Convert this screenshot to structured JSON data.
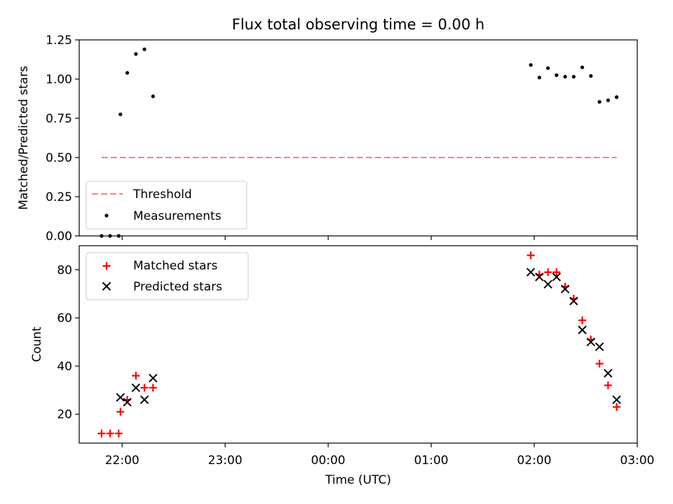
{
  "title": "Flux total observing time = 0.00 h",
  "colors": {
    "threshold": "#ff7f7f",
    "measurements": "#000000",
    "matched": "#ff0000",
    "predicted": "#000000"
  },
  "chart_data": [
    {
      "type": "scatter",
      "ylabel": "Matched/Predicted stars",
      "xlim": [
        "21:35",
        "03:00"
      ],
      "ylim": [
        0,
        1.25
      ],
      "yticks": [
        "0.00",
        "0.25",
        "0.50",
        "0.75",
        "1.00",
        "1.25"
      ],
      "legend_position": "lower-left",
      "series": [
        {
          "name": "Threshold",
          "style": "dashed-line",
          "x": [
            "21:48",
            "02:48"
          ],
          "y": [
            0.5,
            0.5
          ]
        },
        {
          "name": "Measurements",
          "style": "dot",
          "x": [
            "21:48",
            "21:53",
            "21:58",
            "21:59",
            "22:03",
            "22:08",
            "22:13",
            "22:18",
            "01:58",
            "02:03",
            "02:08",
            "02:13",
            "02:18",
            "02:23",
            "02:28",
            "02:33",
            "02:38",
            "02:43",
            "02:48"
          ],
          "y": [
            0.0,
            0.0,
            0.0,
            0.775,
            1.04,
            1.16,
            1.19,
            0.89,
            1.09,
            1.01,
            1.07,
            1.025,
            1.015,
            1.015,
            1.075,
            1.02,
            0.855,
            0.865,
            0.885
          ]
        }
      ]
    },
    {
      "type": "scatter",
      "ylabel": "Count",
      "xlabel": "Time (UTC)",
      "xlim": [
        "21:35",
        "03:00"
      ],
      "xticks": [
        "22:00",
        "23:00",
        "00:00",
        "01:00",
        "02:00",
        "03:00"
      ],
      "ylim": [
        8,
        90
      ],
      "yticks": [
        "20",
        "40",
        "60",
        "80"
      ],
      "legend_position": "upper-left",
      "series": [
        {
          "name": "Matched stars",
          "marker": "+",
          "x": [
            "21:48",
            "21:53",
            "21:58",
            "21:59",
            "22:03",
            "22:08",
            "22:13",
            "22:18",
            "01:58",
            "02:03",
            "02:08",
            "02:13",
            "02:18",
            "02:23",
            "02:28",
            "02:33",
            "02:38",
            "02:43",
            "02:48"
          ],
          "y": [
            12,
            12,
            12,
            21,
            26,
            36,
            31,
            31,
            86,
            78,
            79,
            79,
            73,
            68,
            59,
            51,
            41,
            32,
            23
          ]
        },
        {
          "name": "Predicted stars",
          "marker": "x",
          "x": [
            "21:59",
            "22:03",
            "22:08",
            "22:13",
            "22:18",
            "01:58",
            "02:03",
            "02:08",
            "02:13",
            "02:18",
            "02:23",
            "02:28",
            "02:33",
            "02:38",
            "02:43",
            "02:48"
          ],
          "y": [
            27,
            25,
            31,
            26,
            35,
            79,
            77,
            74,
            77,
            72,
            67,
            55,
            50,
            48,
            37,
            26
          ]
        }
      ]
    }
  ]
}
